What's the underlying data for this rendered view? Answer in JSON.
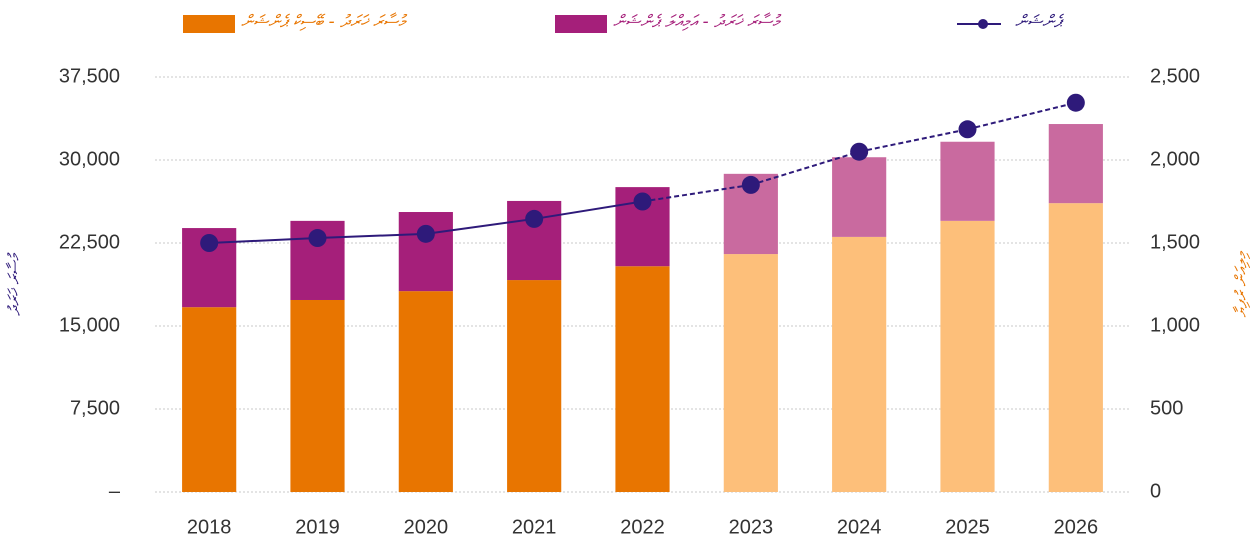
{
  "chart_data": {
    "type": "bar",
    "stacked": true,
    "categories": [
      "2018",
      "2019",
      "2020",
      "2021",
      "2022",
      "2023",
      "2024",
      "2025",
      "2026"
    ],
    "series": [
      {
        "name": "މުސާރަ ޚަރަދު - ބޭސިކް ޕެންޝަން",
        "color": "#e87500",
        "colors": [
          "#e87500",
          "#e87500",
          "#e87500",
          "#e87500",
          "#e87500",
          "#fdbf7a",
          "#fdbf7a",
          "#fdbf7a",
          "#fdbf7a"
        ],
        "values": [
          16700,
          17350,
          18150,
          19150,
          20400,
          21500,
          23050,
          24500,
          26100
        ]
      },
      {
        "name": "މުސާރަ ޚަރަދު - އަމިއްލަ ޕެންޝަން",
        "color": "#a51f7a",
        "colors": [
          "#a51f7a",
          "#a51f7a",
          "#a51f7a",
          "#a51f7a",
          "#a51f7a",
          "#c96a9f",
          "#c96a9f",
          "#c96a9f",
          "#c96a9f"
        ],
        "values": [
          7150,
          7150,
          7150,
          7150,
          7150,
          7250,
          7200,
          7150,
          7150
        ]
      },
      {
        "name": "ޕެންޝަން",
        "type": "line",
        "axis": "y2",
        "color": "#2e1a7a",
        "line_styles": [
          "solid",
          "solid",
          "solid",
          "solid",
          "solid",
          "dashed",
          "dashed",
          "dashed",
          "dashed"
        ],
        "values": [
          1500,
          1530,
          1555,
          1645,
          1750,
          1850,
          2050,
          2185,
          2345
        ]
      }
    ],
    "ylabel": "މުސާރަ ޚަރަދު",
    "y2label": "މިލިއަން ރުފިޔާ",
    "ylim": [
      0,
      37500
    ],
    "yticks": [
      {
        "value": 0,
        "label": "–"
      },
      {
        "value": 7500,
        "label": "7,500"
      },
      {
        "value": 15000,
        "label": "15,000"
      },
      {
        "value": 22500,
        "label": "22,500"
      },
      {
        "value": 30000,
        "label": "30,000"
      },
      {
        "value": 37500,
        "label": "37,500"
      }
    ],
    "y2lim": [
      0,
      2500
    ],
    "y2ticks": [
      0,
      500,
      {
        "value": 1000,
        "label": "1,000"
      },
      {
        "value": 1500,
        "label": "1,500"
      },
      {
        "value": 2000,
        "label": "2,000"
      },
      {
        "value": 2500,
        "label": "2,500"
      }
    ],
    "grid": true
  }
}
